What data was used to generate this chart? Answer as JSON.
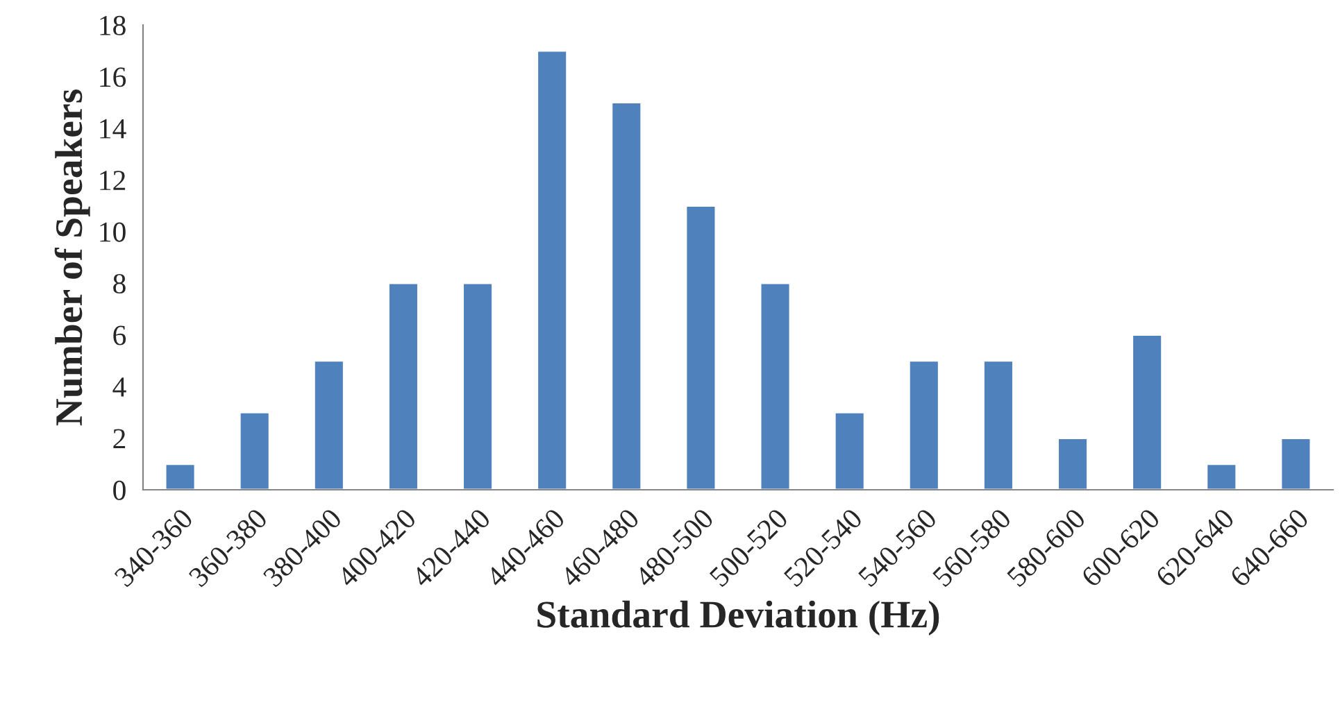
{
  "chart_data": {
    "type": "bar",
    "xlabel": "Standard Deviation (Hz)",
    "ylabel": "Number of Speakers",
    "categories": [
      "340-360",
      "360-380",
      "380-400",
      "400-420",
      "420-440",
      "440-460",
      "460-480",
      "480-500",
      "500-520",
      "520-540",
      "540-560",
      "560-580",
      "580-600",
      "600-620",
      "620-640",
      "640-660"
    ],
    "values": [
      1,
      3,
      5,
      8,
      8,
      17,
      15,
      11,
      8,
      3,
      5,
      5,
      2,
      6,
      1,
      2
    ],
    "color": "#4f81bd",
    "ylim": [
      0,
      18
    ],
    "yticks": [
      0,
      2,
      4,
      6,
      8,
      10,
      12,
      14,
      16,
      18
    ],
    "grid": false,
    "legend": false
  }
}
